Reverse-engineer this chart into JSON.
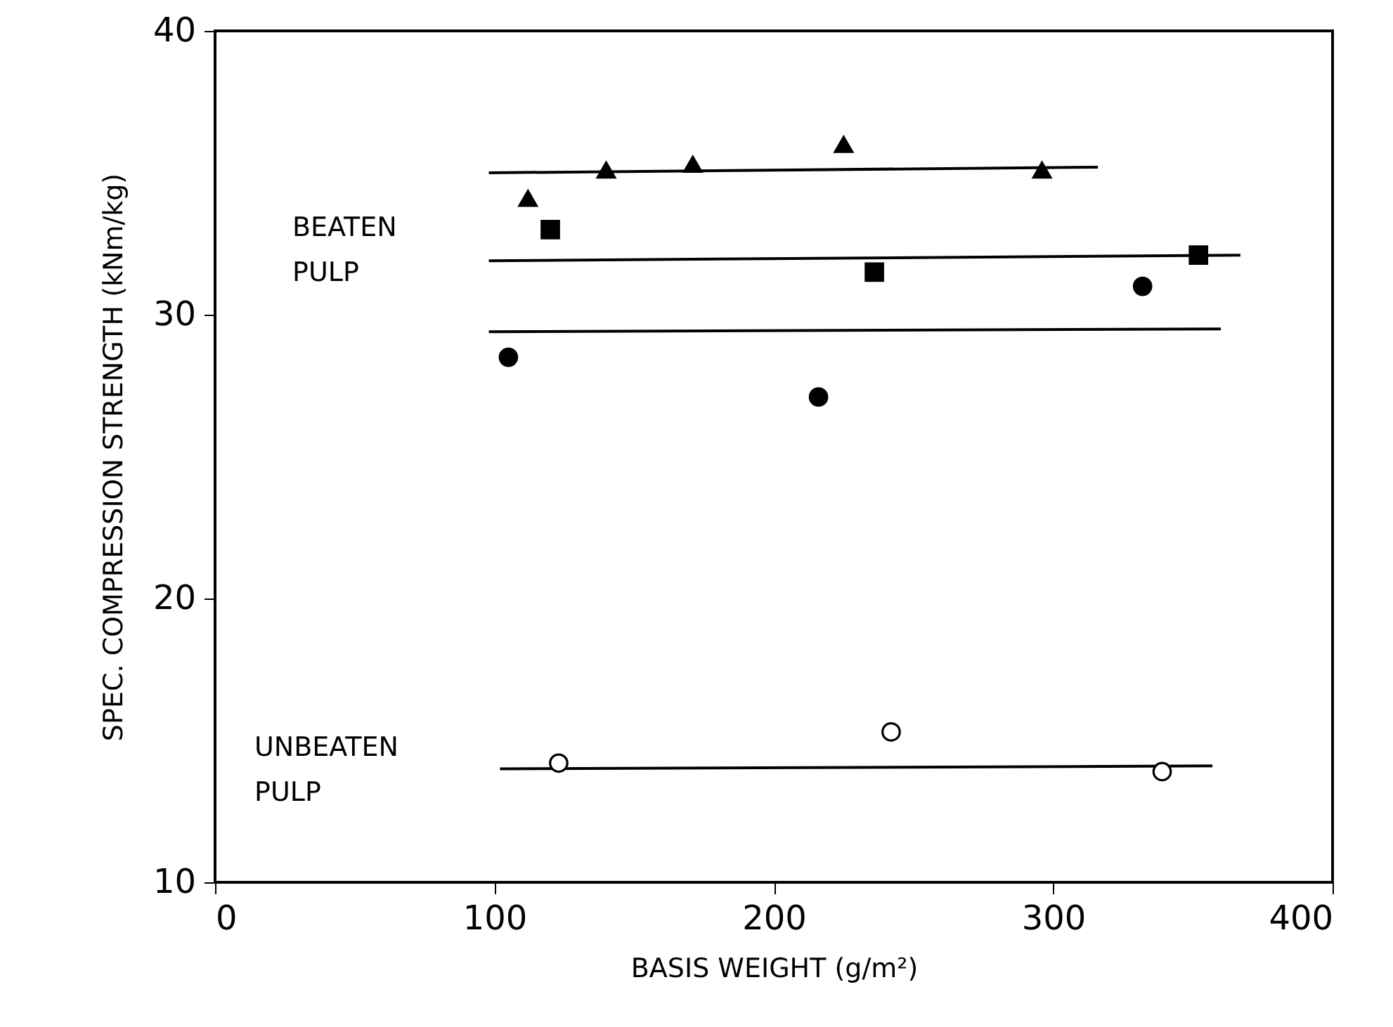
{
  "chart_data": {
    "type": "scatter",
    "xlabel": "BASIS WEIGHT (g/m²)",
    "ylabel": "SPEC. COMPRESSION STRENGTH (kNm/kg)",
    "xlim": [
      0,
      400
    ],
    "ylim": [
      10,
      40
    ],
    "xticks": [
      0,
      100,
      200,
      300,
      400
    ],
    "yticks": [
      10,
      20,
      30,
      40
    ],
    "grid": false,
    "series": [
      {
        "marker": "triangle",
        "color": "#000000",
        "x": [
          112,
          140,
          171,
          225,
          296
        ],
        "values": [
          34.1,
          35.1,
          35.3,
          36.0,
          35.1
        ]
      },
      {
        "marker": "square",
        "color": "#000000",
        "x": [
          120,
          236,
          352
        ],
        "values": [
          33.0,
          31.5,
          32.1
        ]
      },
      {
        "marker": "circle",
        "color": "#000000",
        "x": [
          105,
          216,
          332
        ],
        "values": [
          28.5,
          27.1,
          31.0
        ]
      },
      {
        "marker": "circle",
        "color": "#ffffff",
        "x": [
          123,
          242,
          339
        ],
        "values": [
          14.2,
          15.3,
          13.9
        ]
      },
      {
        "type": "line",
        "color": "#000000",
        "x": [
          98,
          316
        ],
        "values": [
          35.0,
          35.2
        ]
      },
      {
        "type": "line",
        "color": "#000000",
        "x": [
          98,
          367
        ],
        "values": [
          31.9,
          32.1
        ]
      },
      {
        "type": "line",
        "color": "#000000",
        "x": [
          98,
          360
        ],
        "values": [
          29.4,
          29.5
        ]
      },
      {
        "type": "line",
        "color": "#000000",
        "x": [
          102,
          357
        ],
        "values": [
          14.0,
          14.1
        ]
      }
    ],
    "annotations": [
      "BEATEN PULP",
      "UNBEATEN PULP"
    ]
  }
}
